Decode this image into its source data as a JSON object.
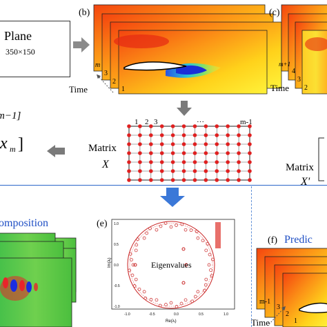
{
  "panel_b": {
    "label": "(b)",
    "stack_labels": [
      "m",
      "3",
      "2",
      "1"
    ],
    "time_label": "Time"
  },
  "panel_c": {
    "label": "(c)",
    "stack_labels": [
      "m+1",
      "4",
      "3",
      "2"
    ],
    "time_label": "Time"
  },
  "plane": {
    "title": "Plane",
    "size": "350×150"
  },
  "left_vector": {
    "partial_top": "m−1]",
    "partial_bottom": "x",
    "partial_bottom_sub": "m",
    "bracket_close": "]"
  },
  "matrix_x": {
    "label": "Matrix",
    "symbol": "X",
    "col_labels": [
      "1",
      "2",
      "3",
      "···",
      "m-1"
    ]
  },
  "matrix_xp": {
    "label": "Matrix",
    "symbol": "X'"
  },
  "panel_d": {
    "title_partial": "omposition"
  },
  "panel_e": {
    "label": "(e)",
    "inner_label": "Eigenvalues",
    "ylabel": "Im(λᵢ)",
    "xlabel": "Re(λᵢ)",
    "x_ticks": [
      "-1.0",
      "-0.5",
      "0.0",
      "0.5",
      "1.0"
    ],
    "y_ticks": [
      "1.0",
      "0.5",
      "0.0",
      "-0.5",
      "-1.0"
    ]
  },
  "panel_f": {
    "label": "(f)",
    "title_partial": "Predic",
    "stack_labels": [
      "m-1",
      "3",
      "2",
      "1"
    ],
    "time_label": "Time"
  },
  "colors": {
    "accent_blue": "#1f4fc4",
    "arrow_blue": "#3b78d8",
    "grid_red": "#e02020",
    "arrow_gray": "#8a8a8a"
  }
}
